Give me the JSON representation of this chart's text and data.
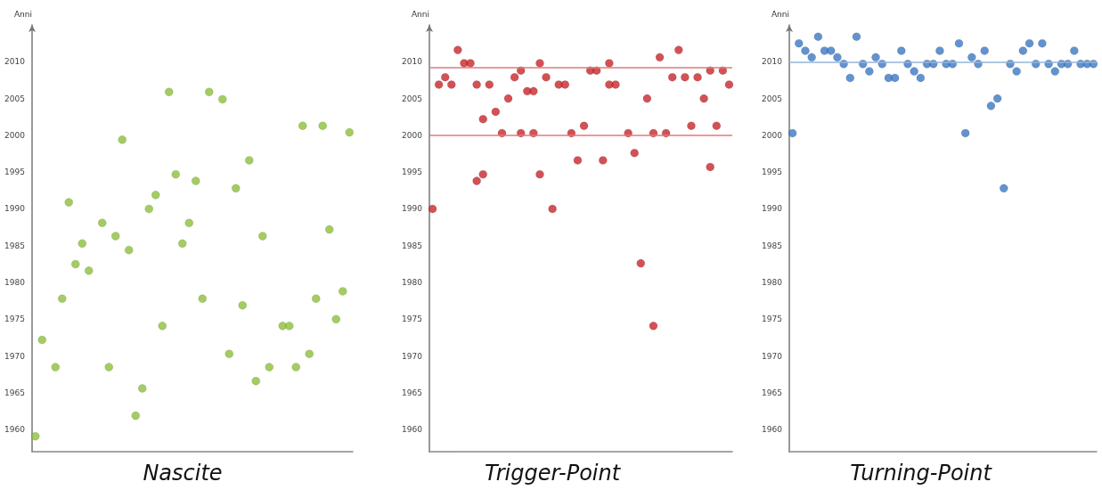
{
  "chart_data": [
    {
      "type": "scatter",
      "title": "Nascite",
      "ylabel": "Anni",
      "marker": "circle",
      "grid": false,
      "tick_labels": "y",
      "ylim": [
        1957,
        2015
      ],
      "yticks": [
        1960,
        1965,
        1970,
        1975,
        1980,
        1985,
        1990,
        1995,
        2000,
        2005,
        2010
      ],
      "categories": [
        null,
        null,
        null,
        null,
        null,
        null,
        null,
        null,
        null,
        null,
        null,
        null,
        null,
        null,
        null,
        null,
        null,
        null,
        null,
        null,
        null,
        null,
        null,
        null,
        null,
        null,
        null,
        null,
        null,
        null,
        null,
        null,
        null,
        null,
        null,
        null,
        null,
        null,
        null,
        null,
        null,
        null,
        null,
        null,
        null,
        null,
        null,
        null
      ],
      "series": [
        {
          "color": "#8cbf3a",
          "values": [
            1959.1,
            1972.2,
            null,
            1968.5,
            1977.8,
            1990.9,
            1982.5,
            1985.3,
            1981.6,
            null,
            1988.1,
            1968.5,
            1986.3,
            1999.4,
            1984.4,
            1961.9,
            1965.6,
            1990.0,
            1991.9,
            1974.1,
            2005.9,
            1994.7,
            1985.3,
            1988.1,
            1993.8,
            1977.8,
            2005.9,
            null,
            2004.9,
            1970.3,
            1992.8,
            1976.9,
            1996.6,
            1966.6,
            1986.3,
            1968.5,
            null,
            1974.1,
            1974.1,
            1968.5,
            2001.3,
            1970.3,
            1977.8,
            2001.3,
            1987.2,
            1975.0,
            1978.8,
            2000.4
          ]
        }
      ]
    },
    {
      "type": "scatter",
      "title": "Trigger-Point",
      "ylabel": "Anni",
      "marker": "circle",
      "grid": false,
      "tick_labels": "y",
      "ylim": [
        1957,
        2015
      ],
      "yticks": [
        1960,
        1965,
        1970,
        1975,
        1980,
        1985,
        1990,
        1995,
        2000,
        2005,
        2010
      ],
      "categories": [
        null,
        null,
        null,
        null,
        null,
        null,
        null,
        null,
        null,
        null,
        null,
        null,
        null,
        null,
        null,
        null,
        null,
        null,
        null,
        null,
        null,
        null,
        null,
        null,
        null,
        null,
        null,
        null,
        null,
        null,
        null,
        null,
        null,
        null,
        null,
        null,
        null,
        null,
        null,
        null,
        null,
        null,
        null,
        null,
        null,
        null,
        null,
        null
      ],
      "series": [
        {
          "color": "#c8262b",
          "values": [
            1990.0,
            2006.9,
            2007.9,
            2006.9,
            2011.6,
            2009.8,
            2009.8,
            2006.9,
            2002.2,
            2006.9,
            2003.2,
            2000.3,
            2005.0,
            2007.9,
            2008.8,
            2006.0,
            2006.0,
            2009.8,
            2007.9,
            1990.0,
            2006.9,
            2006.9,
            2000.3,
            1996.6,
            2001.3,
            2008.8,
            2008.8,
            1996.6,
            2009.8,
            2006.9,
            null,
            2000.3,
            1997.6,
            1982.6,
            2005.0,
            2000.3,
            2010.6,
            2000.3,
            2007.9,
            2011.6,
            2007.9,
            2001.3,
            2007.9,
            2005.0,
            2008.8,
            2001.3,
            2008.8,
            2006.9
          ]
        },
        {
          "color": "#c8262b",
          "values": [
            null,
            null,
            null,
            null,
            null,
            null,
            null,
            1993.8,
            1994.7,
            null,
            null,
            null,
            null,
            null,
            2000.3,
            null,
            2000.3,
            1994.7,
            null,
            null,
            null,
            null,
            null,
            null,
            null,
            null,
            null,
            null,
            2006.9,
            null,
            null,
            null,
            null,
            null,
            null,
            1974.1,
            null,
            null,
            null,
            null,
            null,
            null,
            null,
            null,
            1995.7,
            null,
            null,
            null
          ]
        }
      ],
      "ref_lines": [
        {
          "axis": "y",
          "value": 2009.2,
          "color": "#e07a7a"
        },
        {
          "axis": "y",
          "value": 2000,
          "color": "#e07a7a"
        }
      ]
    },
    {
      "type": "scatter",
      "title": "Turning-Point",
      "ylabel": "Anni",
      "marker": "circle",
      "grid": false,
      "tick_labels": "y",
      "ylim": [
        1957,
        2015
      ],
      "yticks": [
        1960,
        1965,
        1970,
        1975,
        1980,
        1985,
        1990,
        1995,
        2000,
        2005,
        2010
      ],
      "categories": [
        null,
        null,
        null,
        null,
        null,
        null,
        null,
        null,
        null,
        null,
        null,
        null,
        null,
        null,
        null,
        null,
        null,
        null,
        null,
        null,
        null,
        null,
        null,
        null,
        null,
        null,
        null,
        null,
        null,
        null,
        null,
        null,
        null,
        null,
        null,
        null,
        null,
        null,
        null,
        null,
        null,
        null,
        null,
        null,
        null,
        null,
        null,
        null
      ],
      "series": [
        {
          "color": "#3b78c3",
          "values": [
            2000.3,
            2012.5,
            2011.5,
            2010.6,
            2013.4,
            2011.5,
            2011.5,
            2010.6,
            2009.7,
            2007.8,
            2013.4,
            2009.7,
            2008.7,
            2010.6,
            2009.7,
            2007.8,
            2007.8,
            2011.5,
            2009.7,
            2008.7,
            2007.8,
            2009.7,
            2009.7,
            2011.5,
            2009.7,
            2009.7,
            2012.5,
            2000.3,
            2010.6,
            2009.7,
            2011.5,
            2004.0,
            2005.0,
            1992.8,
            2009.7,
            2008.7,
            2011.5,
            2012.5,
            2009.7,
            2012.5,
            2009.7,
            2008.7,
            2009.7,
            2009.7,
            2011.5,
            2009.7,
            2009.7,
            2009.7
          ]
        }
      ],
      "ref_lines": [
        {
          "axis": "y",
          "value": 2010,
          "color": "#94b4da"
        }
      ]
    }
  ]
}
